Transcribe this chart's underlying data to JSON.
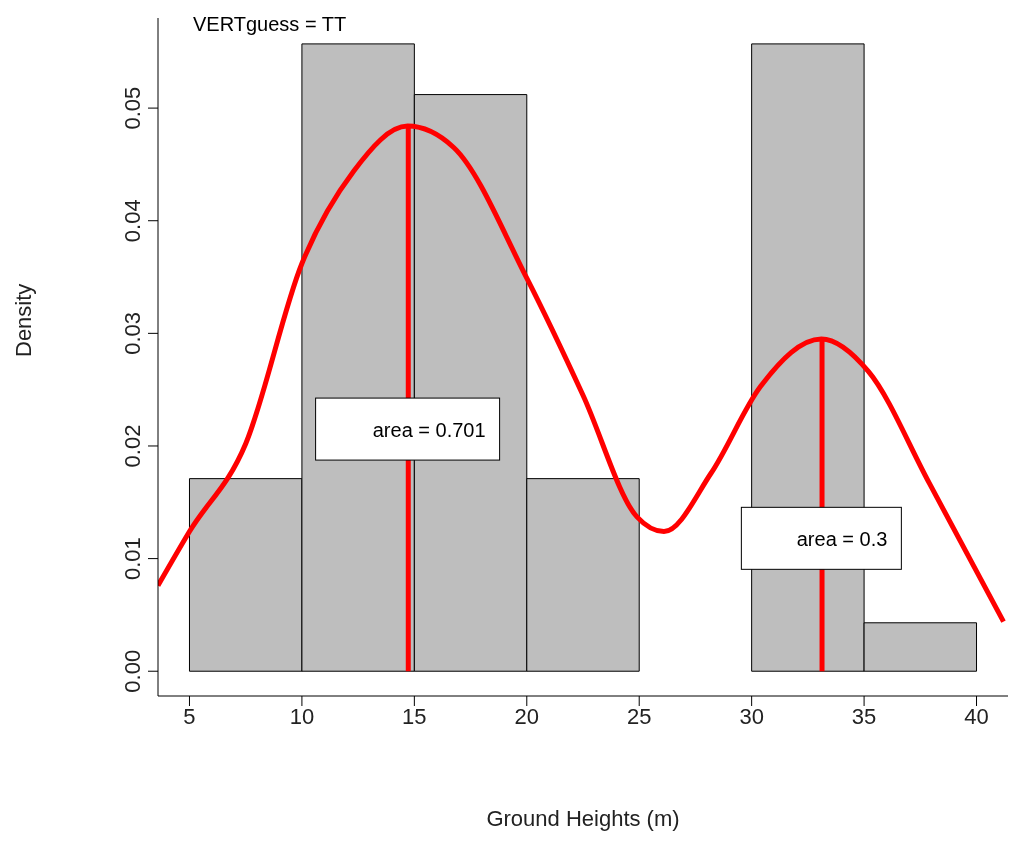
{
  "chart_data": {
    "type": "histogram",
    "xlabel": "Ground Heights (m)",
    "ylabel": "Density",
    "bins": [
      5,
      10,
      15,
      20,
      25,
      30,
      35,
      40
    ],
    "values": [
      0.0171,
      0.0557,
      0.0512,
      0.0171,
      0,
      0.0557,
      0.0043
    ],
    "color": "#bebebe",
    "xlim": [
      3.6,
      41.4
    ],
    "xticks": [
      5,
      10,
      15,
      20,
      25,
      30,
      35,
      40
    ],
    "ylim": [
      -0.0022,
      0.058
    ],
    "yticks": [
      {
        "value": 0,
        "label": "0.00"
      },
      {
        "value": 0.01,
        "label": "0.01"
      },
      {
        "value": 0.02,
        "label": "0.02"
      },
      {
        "value": 0.03,
        "label": "0.03"
      },
      {
        "value": 0.04,
        "label": "0.04"
      },
      {
        "value": 0.05,
        "label": "0.05"
      }
    ],
    "series": [
      {
        "type": "line",
        "color": "#ff0000",
        "x": [
          3.6,
          5,
          7.5,
          10,
          12.3,
          14.7,
          16.75,
          20,
          22.5,
          24.9,
          26.1,
          28.2,
          30.4,
          33.1,
          35.2,
          37.9,
          41.2
        ],
        "values": [
          0.0076,
          0.0124,
          0.0202,
          0.0362,
          0.0444,
          0.0484,
          0.0465,
          0.0349,
          0.0245,
          0.0137,
          0.0124,
          0.0176,
          0.0253,
          0.0295,
          0.0266,
          0.0167,
          0.0044
        ]
      },
      {
        "type": "line",
        "color": "#ff0000",
        "x": [
          14.73,
          14.73
        ],
        "values": [
          0,
          0.0484
        ]
      },
      {
        "type": "line",
        "color": "#ff0000",
        "x": [
          33.13,
          33.13
        ],
        "values": [
          0,
          0.0295
        ]
      }
    ],
    "marker": "none",
    "annotations": [
      "VERTguess = TT",
      {
        "text": "area = 0.701",
        "x": 14.7,
        "y": 0.0215
      },
      {
        "text": "area = 0.3",
        "x": 33.1,
        "y": 0.0118
      }
    ]
  }
}
